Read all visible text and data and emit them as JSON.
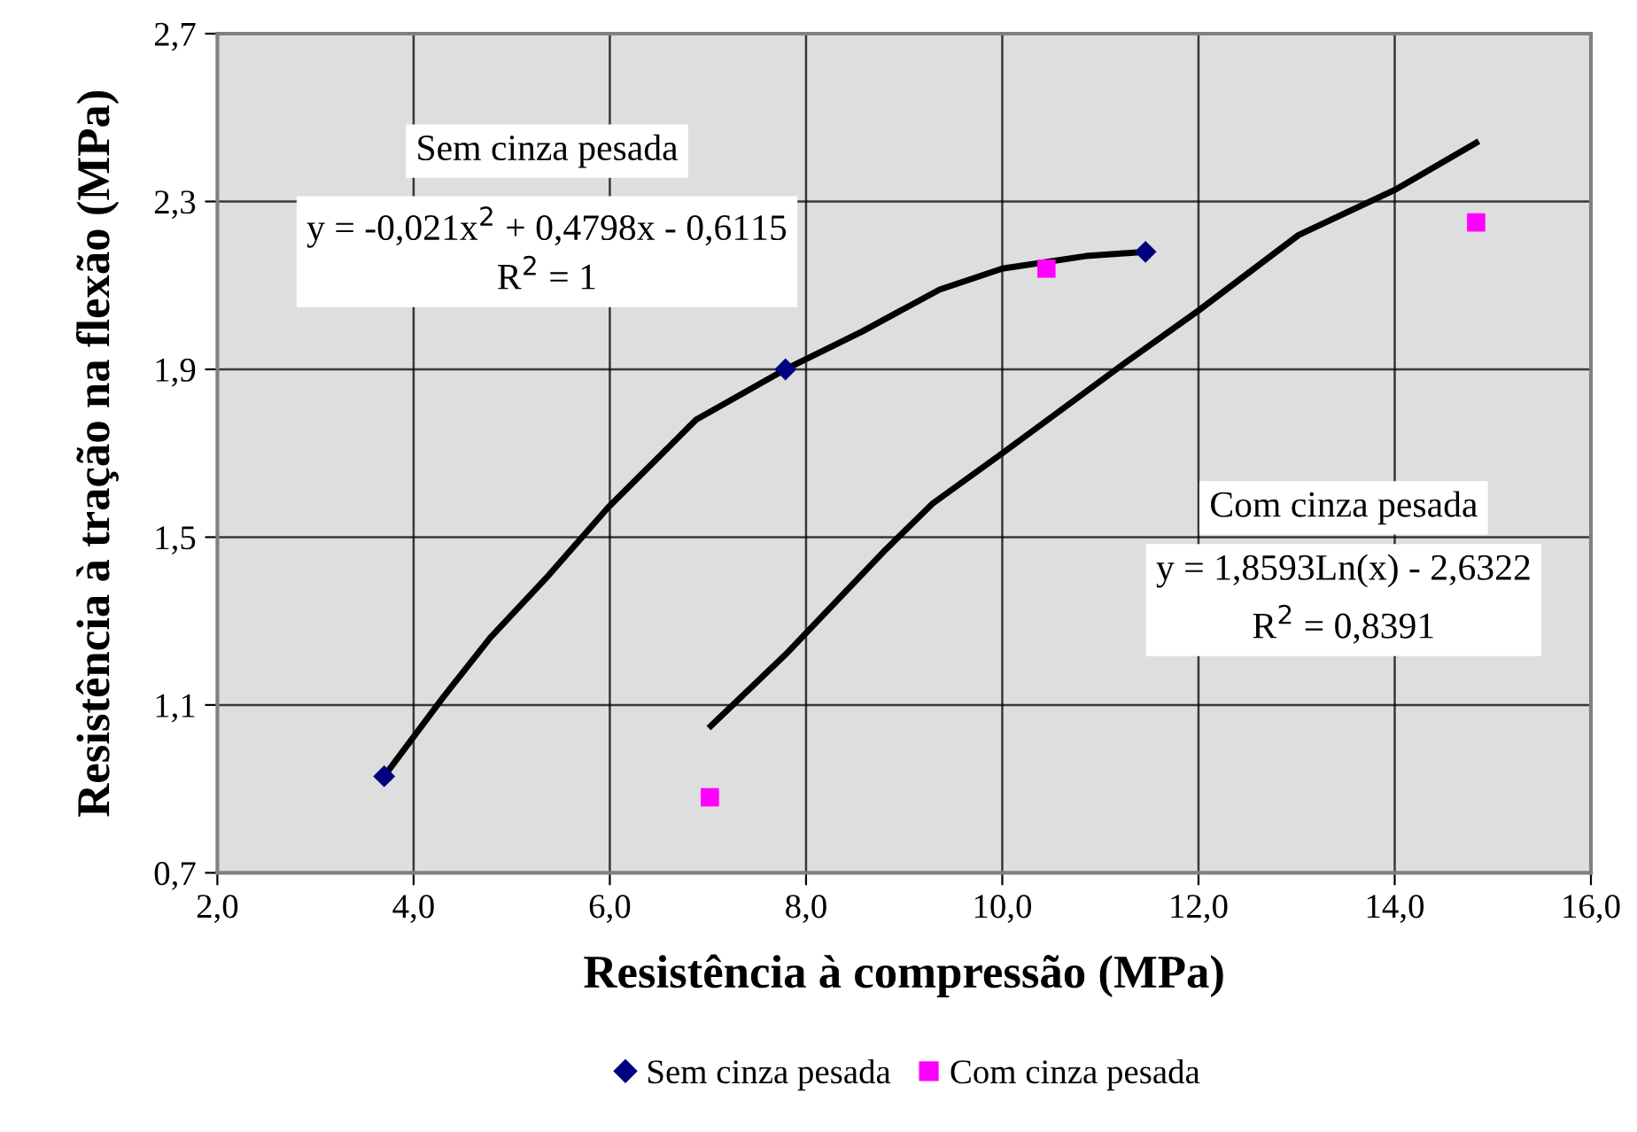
{
  "chart_data": {
    "type": "scatter",
    "xlabel": "Resistência à compressão (MPa)",
    "ylabel": "Resistência à tração na flexão (MPa)",
    "xlim": [
      2,
      16
    ],
    "ylim": [
      0.7,
      2.7
    ],
    "xticks": [
      {
        "value": 2,
        "label": "2,0"
      },
      {
        "value": 4,
        "label": "4,0"
      },
      {
        "value": 6,
        "label": "6,0"
      },
      {
        "value": 8,
        "label": "8,0"
      },
      {
        "value": 10,
        "label": "10,0"
      },
      {
        "value": 12,
        "label": "12,0"
      },
      {
        "value": 14,
        "label": "14,0"
      },
      {
        "value": 16,
        "label": "16,0"
      }
    ],
    "yticks": [
      {
        "value": 0.7,
        "label": "0,7"
      },
      {
        "value": 1.1,
        "label": "1,1"
      },
      {
        "value": 1.5,
        "label": "1,5"
      },
      {
        "value": 1.9,
        "label": "1,9"
      },
      {
        "value": 2.3,
        "label": "2,3"
      },
      {
        "value": 2.7,
        "label": "2,7"
      }
    ],
    "grid": true,
    "legend": "bottom",
    "series": [
      {
        "name": "Sem cinza pesada",
        "marker": "diamond",
        "color": "#000080",
        "x": [
          3.7,
          7.79,
          11.46
        ],
        "values": [
          0.93,
          1.9,
          2.18
        ]
      },
      {
        "name": "Com cinza pesada",
        "marker": "square",
        "color": "#ff00ff",
        "x": [
          7.02,
          10.45,
          14.83
        ],
        "values": [
          0.88,
          2.14,
          2.25
        ]
      },
      {
        "type": "line",
        "color": "#000000",
        "x": [
          3.7,
          4.29,
          4.78,
          5.38,
          5.98,
          6.88,
          7.79,
          8.57,
          9.36,
          10.0,
          10.85,
          11.46
        ],
        "values": [
          0.93,
          1.115,
          1.26,
          1.41,
          1.57,
          1.78,
          1.9,
          1.99,
          2.09,
          2.14,
          2.17,
          2.18
        ]
      },
      {
        "type": "line",
        "color": "#000000",
        "x": [
          7.03,
          7.79,
          8.81,
          9.29,
          10.0,
          11.22,
          12.0,
          13.02,
          14.02,
          14.83
        ],
        "values": [
          1.05,
          1.22,
          1.47,
          1.58,
          1.7,
          1.91,
          2.04,
          2.22,
          2.33,
          2.44
        ]
      }
    ],
    "annotations": [
      "Sem cinza pesada",
      "y = -0,021x$^{2}$ + 0,4798x - 0,6115\nR$^{2}$ = 1",
      "Com cinza pesada",
      "y = 1,8593Ln(x) - 2,6322\nR$^{2}$ = 0,8391"
    ]
  }
}
